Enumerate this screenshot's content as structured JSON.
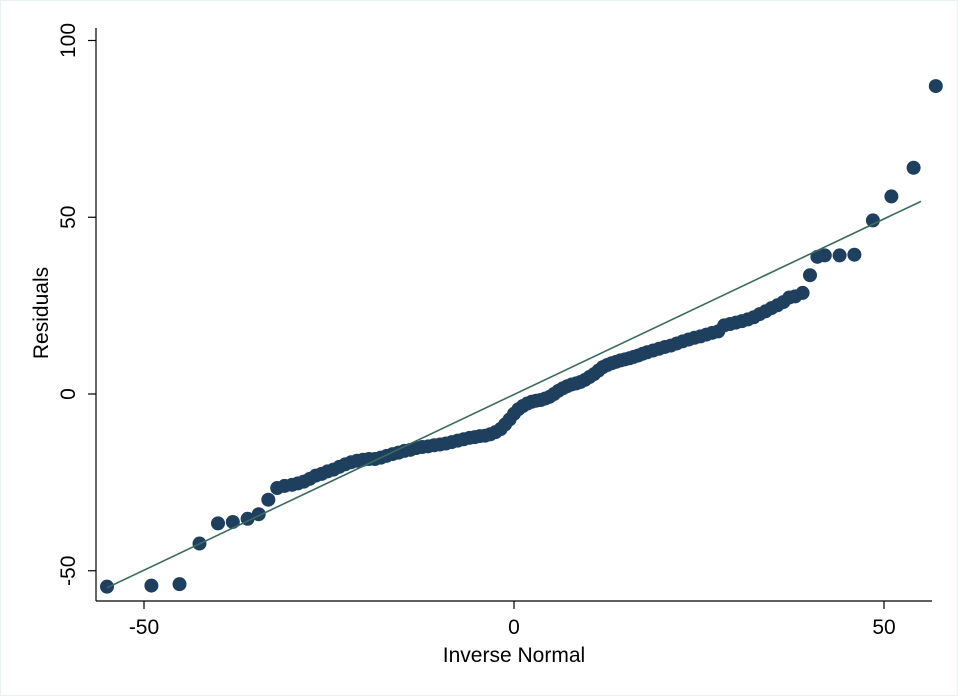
{
  "chart_data": {
    "type": "scatter",
    "title": "",
    "xlabel": "Inverse Normal",
    "ylabel": "Residuals",
    "xlim": [
      -57,
      57
    ],
    "ylim": [
      -58,
      104
    ],
    "xticks": [
      -50,
      0,
      50
    ],
    "xtick_labels": [
      "-50",
      "0",
      "50"
    ],
    "yticks": [
      -50,
      0,
      50,
      100
    ],
    "ytick_labels": [
      "-50",
      "0",
      "50",
      "100"
    ],
    "grid": false,
    "legend": "none",
    "marker_color": "#1f3f5f",
    "line_color": "#3a6b5e",
    "reference_line": {
      "x": [
        -55,
        55
      ],
      "y": [
        -54.8,
        54.5
      ]
    },
    "points": [
      [
        -55.0,
        -54.5
      ],
      [
        -49.0,
        -54.2
      ],
      [
        -45.2,
        -53.8
      ],
      [
        -42.5,
        -42.3
      ],
      [
        -40.0,
        -36.6
      ],
      [
        -38.0,
        -36.2
      ],
      [
        -36.0,
        -35.3
      ],
      [
        -34.5,
        -34.0
      ],
      [
        -33.2,
        -29.9
      ],
      [
        -32.0,
        -26.6
      ],
      [
        -31.0,
        -26.0
      ],
      [
        -30.0,
        -25.7
      ],
      [
        -29.2,
        -25.3
      ],
      [
        -28.4,
        -24.8
      ],
      [
        -27.6,
        -24.0
      ],
      [
        -26.8,
        -23.1
      ],
      [
        -26.0,
        -22.6
      ],
      [
        -25.2,
        -21.9
      ],
      [
        -24.4,
        -21.4
      ],
      [
        -23.6,
        -20.6
      ],
      [
        -22.8,
        -19.9
      ],
      [
        -22.0,
        -19.3
      ],
      [
        -21.2,
        -18.9
      ],
      [
        -20.4,
        -18.6
      ],
      [
        -19.6,
        -18.4
      ],
      [
        -18.8,
        -18.4
      ],
      [
        -18.0,
        -18.0
      ],
      [
        -17.2,
        -17.5
      ],
      [
        -16.4,
        -17.0
      ],
      [
        -15.6,
        -16.6
      ],
      [
        -14.8,
        -16.1
      ],
      [
        -14.0,
        -15.8
      ],
      [
        -13.2,
        -15.3
      ],
      [
        -12.4,
        -15.0
      ],
      [
        -11.6,
        -14.8
      ],
      [
        -10.8,
        -14.5
      ],
      [
        -10.0,
        -14.3
      ],
      [
        -9.2,
        -14.0
      ],
      [
        -8.4,
        -13.6
      ],
      [
        -7.6,
        -13.2
      ],
      [
        -6.8,
        -12.8
      ],
      [
        -6.0,
        -12.4
      ],
      [
        -5.3,
        -12.2
      ],
      [
        -4.6,
        -11.9
      ],
      [
        -3.9,
        -11.8
      ],
      [
        -3.2,
        -11.4
      ],
      [
        -2.5,
        -10.8
      ],
      [
        -1.8,
        -9.9
      ],
      [
        -1.2,
        -8.6
      ],
      [
        -0.6,
        -7.2
      ],
      [
        0.0,
        -5.6
      ],
      [
        0.6,
        -4.3
      ],
      [
        1.2,
        -3.4
      ],
      [
        1.8,
        -2.7
      ],
      [
        2.4,
        -2.2
      ],
      [
        3.0,
        -1.9
      ],
      [
        3.6,
        -1.7
      ],
      [
        4.2,
        -1.3
      ],
      [
        4.8,
        -0.8
      ],
      [
        5.4,
        0.0
      ],
      [
        6.0,
        0.9
      ],
      [
        6.6,
        1.6
      ],
      [
        7.2,
        2.2
      ],
      [
        7.8,
        2.7
      ],
      [
        8.4,
        3.0
      ],
      [
        9.0,
        3.4
      ],
      [
        9.6,
        4.0
      ],
      [
        10.2,
        4.8
      ],
      [
        10.8,
        5.6
      ],
      [
        11.4,
        6.6
      ],
      [
        12.0,
        7.6
      ],
      [
        12.6,
        8.2
      ],
      [
        13.2,
        8.7
      ],
      [
        13.8,
        9.1
      ],
      [
        14.4,
        9.5
      ],
      [
        15.0,
        9.8
      ],
      [
        15.6,
        10.1
      ],
      [
        16.2,
        10.5
      ],
      [
        16.8,
        10.9
      ],
      [
        17.4,
        11.4
      ],
      [
        18.0,
        11.8
      ],
      [
        18.8,
        12.3
      ],
      [
        19.6,
        12.8
      ],
      [
        20.4,
        13.3
      ],
      [
        21.2,
        13.7
      ],
      [
        22.0,
        14.3
      ],
      [
        22.8,
        14.9
      ],
      [
        23.6,
        15.4
      ],
      [
        24.4,
        15.9
      ],
      [
        25.2,
        16.3
      ],
      [
        26.0,
        16.8
      ],
      [
        26.8,
        17.3
      ],
      [
        27.6,
        17.7
      ],
      [
        28.4,
        19.4
      ],
      [
        29.2,
        19.8
      ],
      [
        30.0,
        20.2
      ],
      [
        30.8,
        20.6
      ],
      [
        31.6,
        21.1
      ],
      [
        32.4,
        21.7
      ],
      [
        33.2,
        22.6
      ],
      [
        34.0,
        23.4
      ],
      [
        34.8,
        24.3
      ],
      [
        35.6,
        25.1
      ],
      [
        36.4,
        26.0
      ],
      [
        37.2,
        27.3
      ],
      [
        38.0,
        27.6
      ],
      [
        39.0,
        28.6
      ],
      [
        40.0,
        33.6
      ],
      [
        41.0,
        38.8
      ],
      [
        42.0,
        39.2
      ],
      [
        44.0,
        39.2
      ],
      [
        46.0,
        39.4
      ],
      [
        48.5,
        49.1
      ],
      [
        51.0,
        55.9
      ],
      [
        54.0,
        64.0
      ],
      [
        57.0,
        87.1
      ]
    ]
  }
}
